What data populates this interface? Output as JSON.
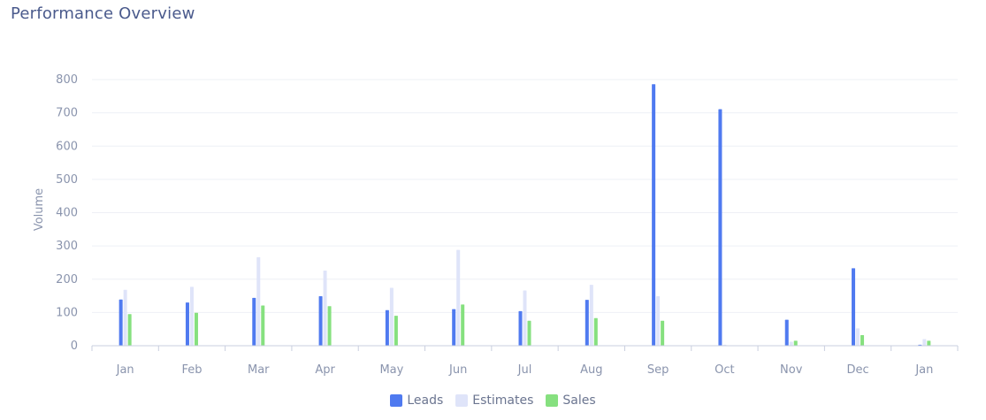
{
  "page": {
    "title": "Performance Overview"
  },
  "colors": {
    "leads": "#4f7af0",
    "estimates": "#dfe4f9",
    "sales": "#86e07f",
    "grid": "#eef0f6",
    "axis": "#c9cfdf",
    "tick_text": "#8a94ad"
  },
  "chart_data": {
    "type": "bar",
    "title": "Performance Overview",
    "xlabel": "",
    "ylabel": "Volume",
    "ylim": [
      0,
      800
    ],
    "yticks": [
      0,
      100,
      200,
      300,
      400,
      500,
      600,
      700,
      800
    ],
    "grid": true,
    "legend_position": "bottom-center",
    "categories": [
      "Jan",
      "Feb",
      "Mar",
      "Apr",
      "May",
      "Jun",
      "Jul",
      "Aug",
      "Sep",
      "Oct",
      "Nov",
      "Dec",
      "Jan"
    ],
    "series": [
      {
        "name": "Leads",
        "color": "#4f7af0",
        "values": [
          139,
          130,
          144,
          149,
          107,
          110,
          104,
          138,
          786,
          711,
          78,
          233,
          3
        ]
      },
      {
        "name": "Estimates",
        "color": "#dfe4f9",
        "values": [
          168,
          177,
          266,
          226,
          174,
          288,
          166,
          183,
          149,
          3,
          12,
          52,
          20
        ]
      },
      {
        "name": "Sales",
        "color": "#86e07f",
        "values": [
          95,
          99,
          121,
          119,
          90,
          124,
          75,
          83,
          75,
          1,
          15,
          32,
          15
        ]
      }
    ]
  }
}
